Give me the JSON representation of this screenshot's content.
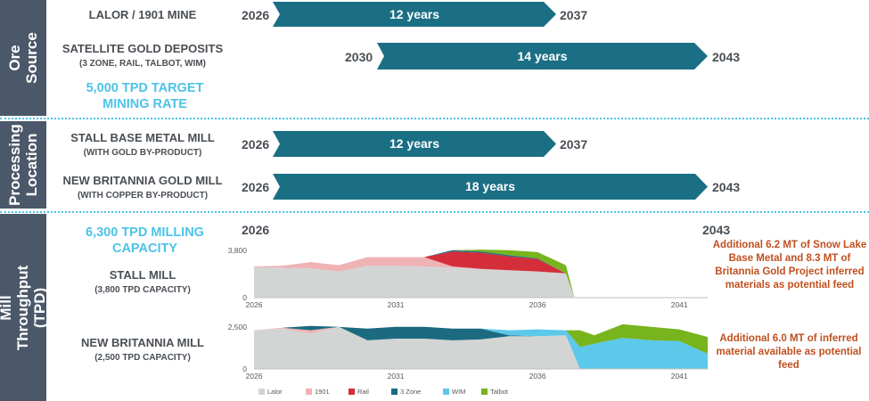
{
  "sidebar": {
    "ore_source": "Ore Source",
    "processing_location": "Processing Location",
    "mill_throughput": "Mill Throughput (TPD)"
  },
  "ore_source": {
    "lalor": {
      "title": "LALOR / 1901 MINE",
      "start": "2026",
      "end": "2037",
      "duration": "12 years"
    },
    "satellite": {
      "title": "SATELLITE GOLD DEPOSITS",
      "subtitle": "(3 ZONE, RAIL, TALBOT, WIM)",
      "start": "2030",
      "end": "2043",
      "duration": "14 years"
    },
    "target_rate": "5,000 TPD TARGET MINING RATE"
  },
  "processing": {
    "stall": {
      "title": "STALL BASE METAL MILL",
      "subtitle": "(WITH GOLD BY-PRODUCT)",
      "start": "2026",
      "end": "2037",
      "duration": "12 years"
    },
    "new_britannia": {
      "title": "NEW BRITANNIA GOLD MILL",
      "subtitle": "(WITH COPPER BY-PRODUCT)",
      "start": "2026",
      "end": "2043",
      "duration": "18 years"
    }
  },
  "throughput": {
    "capacity": "6,300 TPD MILLING CAPACITY",
    "start": "2026",
    "end": "2043",
    "stall": {
      "title": "STALL MILL",
      "subtitle": "(3,800 TPD CAPACITY)"
    },
    "new_britannia": {
      "title": "NEW BRITANNIA MILL",
      "subtitle": "(2,500 TPD CAPACITY)"
    },
    "note_stall": "Additional 6.2 MT of Snow Lake Base Metal and 8.3 MT of Britannia Gold Project inferred materials as potential feed",
    "note_nb": "Additional 6.0 MT of inferred material available as potential feed"
  },
  "colors": {
    "sidebar": "#4b5869",
    "arrow": "#1b6f85",
    "accent": "#4cc3e6",
    "note": "#c0501f",
    "Lalor": "#d3d4d4",
    "1901": "#efb2b5",
    "Rail": "#d42e3a",
    "3 Zone": "#1b6a80",
    "WIM": "#5cc8ea",
    "Talbot": "#77b41e"
  },
  "chart_data": [
    {
      "type": "area",
      "stacked": true,
      "title": "STALL MILL",
      "x": [
        2026,
        2027,
        2028,
        2029,
        2030,
        2031,
        2032,
        2033,
        2034,
        2035,
        2036,
        2037,
        2037.3
      ],
      "xticks": [
        2026,
        2031,
        2036,
        2041
      ],
      "xlim": [
        2026,
        2042
      ],
      "yticks": [
        0,
        3800
      ],
      "ytick_labels": [
        "0",
        "3,800"
      ],
      "ylim": [
        0,
        4000
      ],
      "grid": false,
      "legend": "bottom",
      "series": [
        {
          "name": "Lalor",
          "values": [
            2450,
            2400,
            2350,
            2100,
            2550,
            2550,
            2500,
            2400,
            2300,
            2200,
            2100,
            1950,
            0
          ]
        },
        {
          "name": "1901",
          "values": [
            50,
            150,
            500,
            500,
            700,
            700,
            750,
            100,
            0,
            0,
            0,
            0,
            0
          ]
        },
        {
          "name": "Rail",
          "values": [
            0,
            0,
            0,
            0,
            0,
            0,
            0,
            1200,
            1300,
            1100,
            1000,
            0,
            0
          ]
        },
        {
          "name": "3 Zone",
          "values": [
            0,
            0,
            0,
            0,
            0,
            0,
            0,
            100,
            100,
            100,
            50,
            0,
            0
          ]
        },
        {
          "name": "WIM",
          "values": [
            0,
            0,
            0,
            0,
            0,
            0,
            0,
            0,
            0,
            0,
            0,
            0,
            0
          ]
        },
        {
          "name": "Talbot",
          "values": [
            0,
            0,
            0,
            0,
            0,
            0,
            0,
            0,
            150,
            400,
            500,
            650,
            0
          ]
        }
      ]
    },
    {
      "type": "area",
      "stacked": true,
      "title": "NEW BRITANNIA MILL",
      "x": [
        2026,
        2027,
        2028,
        2029,
        2030,
        2031,
        2032,
        2033,
        2034,
        2035,
        2036,
        2037,
        2037.5,
        2038,
        2039,
        2040,
        2041,
        2042
      ],
      "xticks": [
        2026,
        2031,
        2036,
        2041
      ],
      "xlim": [
        2026,
        2042
      ],
      "yticks": [
        0,
        2500
      ],
      "ytick_labels": [
        "0",
        "2,500"
      ],
      "ylim": [
        0,
        2700
      ],
      "grid": false,
      "legend": "bottom",
      "series": [
        {
          "name": "Lalor",
          "values": [
            2300,
            2400,
            2100,
            2500,
            1700,
            1800,
            1800,
            1700,
            1750,
            1950,
            1950,
            2000,
            0,
            0,
            0,
            0,
            0,
            0
          ]
        },
        {
          "name": "1901",
          "values": [
            0,
            50,
            200,
            0,
            0,
            0,
            0,
            0,
            0,
            0,
            0,
            0,
            0,
            0,
            0,
            0,
            0,
            0
          ]
        },
        {
          "name": "Rail",
          "values": [
            0,
            0,
            0,
            0,
            0,
            0,
            0,
            0,
            0,
            0,
            0,
            0,
            0,
            0,
            0,
            0,
            0,
            0
          ]
        },
        {
          "name": "3 Zone",
          "values": [
            0,
            0,
            250,
            0,
            700,
            700,
            700,
            700,
            650,
            50,
            0,
            0,
            0,
            0,
            0,
            0,
            0,
            0
          ]
        },
        {
          "name": "WIM",
          "values": [
            0,
            0,
            0,
            0,
            0,
            0,
            0,
            0,
            0,
            300,
            400,
            300,
            1300,
            1500,
            1850,
            1700,
            1650,
            900
          ]
        },
        {
          "name": "Talbot",
          "values": [
            0,
            0,
            0,
            0,
            0,
            0,
            0,
            0,
            0,
            0,
            0,
            0,
            1000,
            500,
            800,
            800,
            700,
            1000
          ]
        }
      ]
    }
  ]
}
